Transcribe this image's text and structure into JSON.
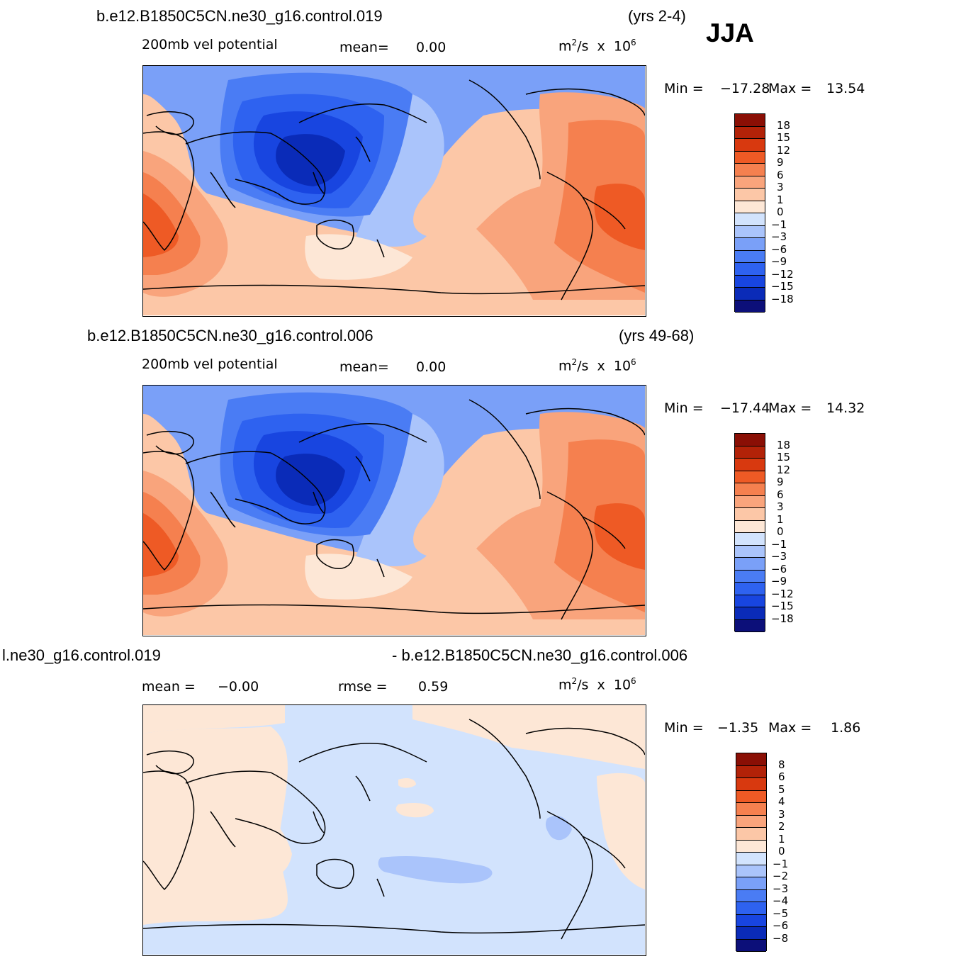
{
  "season": "JJA",
  "units": {
    "base": "m",
    "sup1": "2",
    "mid": "/s  x  10",
    "sup2": "6"
  },
  "palette": {
    "absolute": [
      "#0c0f79",
      "#0a2bb8",
      "#1845e0",
      "#2e62f0",
      "#4a7cf4",
      "#7aa0f8",
      "#aac4fb",
      "#d2e3fd",
      "#fde7d6",
      "#fcc7a7",
      "#f9a47c",
      "#f5804f",
      "#ee5a25",
      "#d8390f",
      "#b22208",
      "#8a0f05"
    ],
    "difference": [
      "#0c0f79",
      "#0a2bb8",
      "#1845e0",
      "#2e62f0",
      "#4a7cf4",
      "#7aa0f8",
      "#aac4fb",
      "#d2e3fd",
      "#fde7d6",
      "#fcc7a7",
      "#f9a47c",
      "#f5804f",
      "#ee5a25",
      "#d8390f",
      "#b22208",
      "#8a0f05"
    ]
  },
  "panels": [
    {
      "id": "top",
      "case": "b.e12.B1850C5CN.ne30_g16.control.019",
      "years": "(yrs 2-4)",
      "field": "200mb  vel  potential",
      "stat1_label": "mean=",
      "stat1_value": "0.00",
      "min_label": "Min  =",
      "min_value": "−17.28",
      "max_label": "Max  =",
      "max_value": "13.54",
      "colorbar_labels": [
        "18",
        "15",
        "12",
        "9",
        "6",
        "3",
        "1",
        "0",
        "−1",
        "−3",
        "−6",
        "−9",
        "−12",
        "−15",
        "−18"
      ]
    },
    {
      "id": "middle",
      "case": "b.e12.B1850C5CN.ne30_g16.control.006",
      "years": "(yrs 49-68)",
      "field": "200mb  vel  potential",
      "stat1_label": "mean=",
      "stat1_value": "0.00",
      "min_label": "Min  =",
      "min_value": "−17.44",
      "max_label": "Max  =",
      "max_value": "14.32",
      "colorbar_labels": [
        "18",
        "15",
        "12",
        "9",
        "6",
        "3",
        "1",
        "0",
        "−1",
        "−3",
        "−6",
        "−9",
        "−12",
        "−15",
        "−18"
      ]
    },
    {
      "id": "difference",
      "case_left": "l.ne30_g16.control.019",
      "case_right": "- b.e12.B1850C5CN.ne30_g16.control.006",
      "stat1_label": "mean  =",
      "stat1_value": "−0.00",
      "stat2_label": "rmse  =",
      "stat2_value": "0.59",
      "min_label": "Min  =",
      "min_value": "−1.35",
      "max_label": "Max  =",
      "max_value": "1.86",
      "colorbar_labels": [
        "8",
        "6",
        "5",
        "4",
        "3",
        "2",
        "1",
        "0",
        "−1",
        "−2",
        "−3",
        "−4",
        "−5",
        "−6",
        "−8"
      ]
    }
  ]
}
